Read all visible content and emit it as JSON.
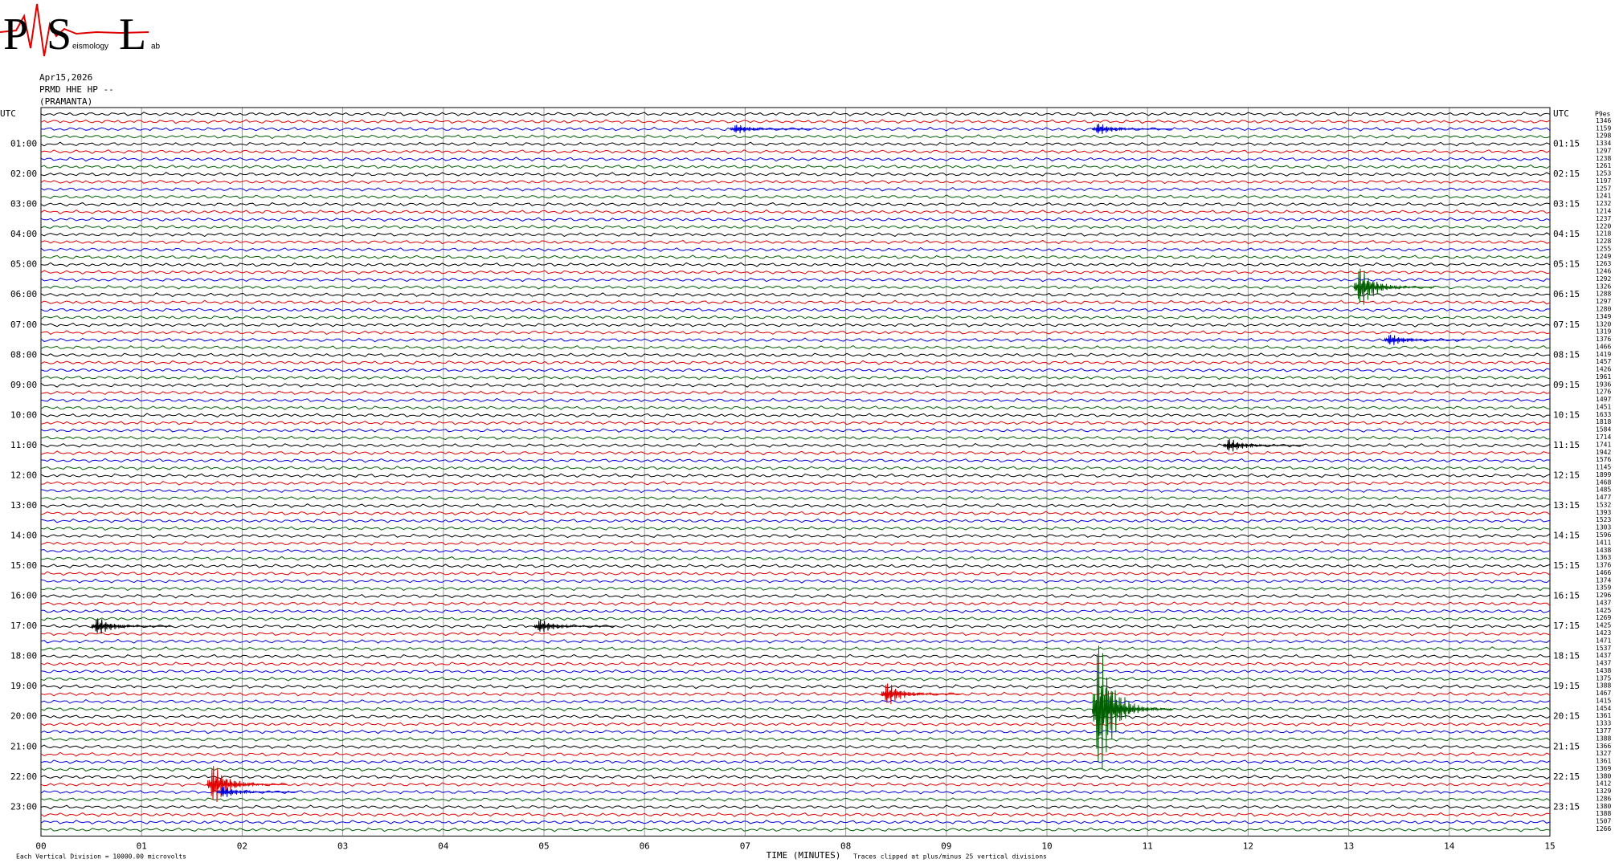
{
  "chart_data": {
    "type": "helicorder",
    "logo": {
      "letters": [
        "P",
        "S",
        "L"
      ],
      "words": [
        "eismology",
        "ab"
      ]
    },
    "date": "Apr15,2026",
    "station": "PRMD HHE HP --",
    "site": "(PRAMANTA)",
    "left_labels": [
      "UTC",
      "01:00",
      "02:00",
      "03:00",
      "04:00",
      "05:00",
      "06:00",
      "07:00",
      "08:00",
      "09:00",
      "10:00",
      "11:00",
      "12:00",
      "13:00",
      "14:00",
      "15:00",
      "16:00",
      "17:00",
      "18:00",
      "19:00",
      "20:00",
      "21:00",
      "22:00",
      "23:00"
    ],
    "right_labels": [
      "UTC",
      "01:15",
      "02:15",
      "03:15",
      "04:15",
      "05:15",
      "06:15",
      "07:15",
      "08:15",
      "09:15",
      "10:15",
      "11:15",
      "12:15",
      "13:15",
      "14:15",
      "15:15",
      "16:15",
      "17:15",
      "18:15",
      "19:15",
      "20:15",
      "21:15",
      "22:15",
      "23:15"
    ],
    "scale_header": "P9es",
    "trace_scales": [
      1346,
      1159,
      1298,
      1334,
      1297,
      1238,
      1261,
      1253,
      1197,
      1257,
      1241,
      1232,
      1214,
      1237,
      1220,
      1218,
      1228,
      1255,
      1249,
      1263,
      1246,
      1292,
      1326,
      1288,
      1297,
      1280,
      1349,
      1320,
      1319,
      1376,
      1466,
      1419,
      1457,
      1426,
      1961,
      1936,
      1276,
      1497,
      1451,
      1633,
      1818,
      1584,
      1714,
      1741,
      1942,
      1576,
      1145,
      1899,
      1468,
      1485,
      1477,
      1532,
      1393,
      1523,
      1303,
      1596,
      1411,
      1438,
      1363,
      1376,
      1466,
      1374,
      1359,
      1296,
      1437,
      1425,
      1269,
      1425,
      1423,
      1471,
      1537,
      1437,
      1437,
      1438,
      1375,
      1388,
      1467,
      1415,
      1454,
      1361,
      1333,
      1377,
      1388,
      1366,
      1327,
      1361,
      1369,
      1380,
      1412,
      1329,
      1286,
      1380,
      1388,
      1507,
      1266
    ],
    "colors": [
      "#000000",
      "#e00000",
      "#0000e0",
      "#006000"
    ],
    "xlim": [
      0,
      15
    ],
    "xticks": [
      {
        "value": 0,
        "label": "00"
      },
      {
        "value": 1,
        "label": "01"
      },
      {
        "value": 2,
        "label": "02"
      },
      {
        "value": 3,
        "label": "03"
      },
      {
        "value": 4,
        "label": "04"
      },
      {
        "value": 5,
        "label": "05"
      },
      {
        "value": 6,
        "label": "06"
      },
      {
        "value": 7,
        "label": "07"
      },
      {
        "value": 8,
        "label": "08"
      },
      {
        "value": 9,
        "label": "09"
      },
      10,
      11,
      12,
      13,
      14,
      15
    ],
    "x_label": "TIME (MINUTES)",
    "footer_left": "Each Vertical Division = 10000.00 microvolts",
    "footer_right": "Traces clipped at plus/minus 25 vertical divisions",
    "events": [
      {
        "trace": 89,
        "minute": 1.7,
        "amplitude": 3.5
      },
      {
        "trace": 90,
        "minute": 1.8,
        "amplitude": 1
      },
      {
        "trace": 79,
        "minute": 10.5,
        "amplitude": 12
      },
      {
        "trace": 77,
        "minute": 8.4,
        "amplitude": 2
      },
      {
        "trace": 68,
        "minute": 0.55,
        "amplitude": 1.5
      },
      {
        "trace": 68,
        "minute": 4.95,
        "amplitude": 1.2
      },
      {
        "trace": 23,
        "minute": 13.1,
        "amplitude": 3.5
      },
      {
        "trace": 2,
        "minute": 6.9,
        "amplitude": 0.8
      },
      {
        "trace": 2,
        "minute": 10.5,
        "amplitude": 1
      },
      {
        "trace": 44,
        "minute": 11.8,
        "amplitude": 1.2
      },
      {
        "trace": 30,
        "minute": 13.4,
        "amplitude": 1
      }
    ]
  }
}
